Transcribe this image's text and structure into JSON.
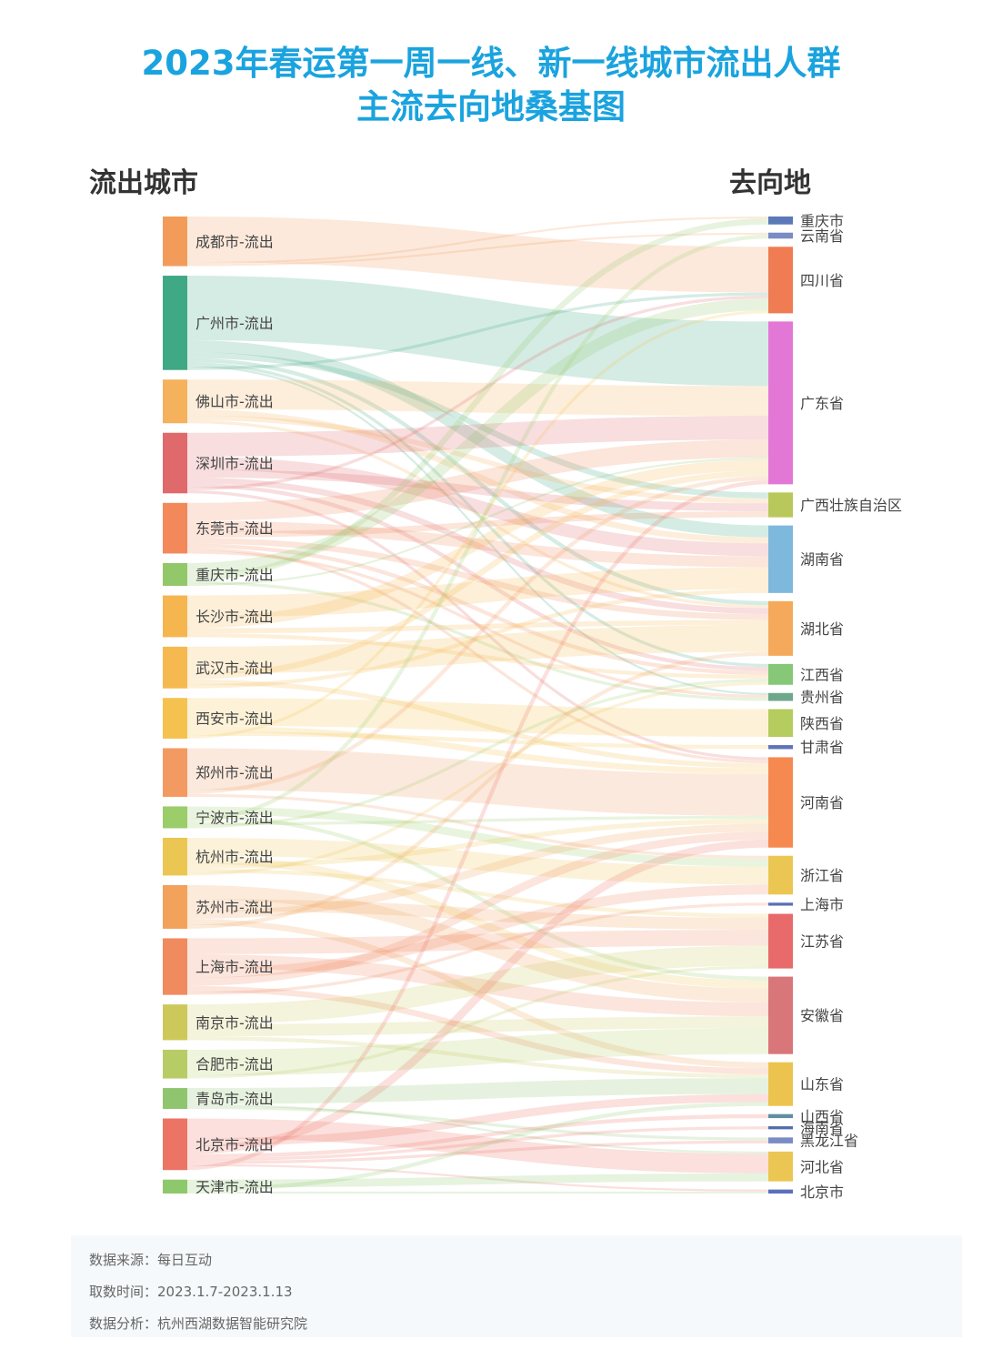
{
  "title": {
    "line1": "2023年春运第一周一线、新一线城市流出人群",
    "line2": "主流去向地桑基图"
  },
  "headers": {
    "source": "流出城市",
    "target": "去向地"
  },
  "footer": {
    "source": "数据来源：每日互动",
    "period": "取数时间：2023.1.7-2023.1.13",
    "analysis": "数据分析：杭州西湖数据智能研究院"
  },
  "chart_data": {
    "type": "sankey",
    "sources": [
      {
        "name": "成都市-流出",
        "color": "#f39c5a"
      },
      {
        "name": "广州市-流出",
        "color": "#3fa884"
      },
      {
        "name": "佛山市-流出",
        "color": "#f5b15c"
      },
      {
        "name": "深圳市-流出",
        "color": "#e0696c"
      },
      {
        "name": "东莞市-流出",
        "color": "#f3885b"
      },
      {
        "name": "重庆市-流出",
        "color": "#93c86a"
      },
      {
        "name": "长沙市-流出",
        "color": "#f5b54f"
      },
      {
        "name": "武汉市-流出",
        "color": "#f5b94f"
      },
      {
        "name": "西安市-流出",
        "color": "#f5c24f"
      },
      {
        "name": "郑州市-流出",
        "color": "#f39a62"
      },
      {
        "name": "宁波市-流出",
        "color": "#9bcd6b"
      },
      {
        "name": "杭州市-流出",
        "color": "#ecc653"
      },
      {
        "name": "苏州市-流出",
        "color": "#f3a25b"
      },
      {
        "name": "上海市-流出",
        "color": "#f08a5f"
      },
      {
        "name": "南京市-流出",
        "color": "#cdc85a"
      },
      {
        "name": "合肥市-流出",
        "color": "#b8cc66"
      },
      {
        "name": "青岛市-流出",
        "color": "#8fc56f"
      },
      {
        "name": "北京市-流出",
        "color": "#ec7465"
      },
      {
        "name": "天津市-流出",
        "color": "#8ec86c"
      }
    ],
    "targets": [
      {
        "name": "重庆市",
        "color": "#5b78b8"
      },
      {
        "name": "云南省",
        "color": "#7a8cc4"
      },
      {
        "name": "四川省",
        "color": "#ef7c52"
      },
      {
        "name": "广东省",
        "color": "#e377d6"
      },
      {
        "name": "广西壮族自治区",
        "color": "#b9c85a"
      },
      {
        "name": "湖南省",
        "color": "#7eb8dd"
      },
      {
        "name": "湖北省",
        "color": "#f5a95a"
      },
      {
        "name": "江西省",
        "color": "#86c877"
      },
      {
        "name": "贵州省",
        "color": "#6ea88a"
      },
      {
        "name": "陕西省",
        "color": "#b5cc5e"
      },
      {
        "name": "甘肃省",
        "color": "#5f73b8"
      },
      {
        "name": "河南省",
        "color": "#f5894f"
      },
      {
        "name": "浙江省",
        "color": "#ecc653"
      },
      {
        "name": "上海市",
        "color": "#5870b5"
      },
      {
        "name": "江苏省",
        "color": "#e86a6a"
      },
      {
        "name": "安徽省",
        "color": "#d9767a"
      },
      {
        "name": "山东省",
        "color": "#ecc34f"
      },
      {
        "name": "山西省",
        "color": "#5f8fa0"
      },
      {
        "name": "海南省",
        "color": "#4f6ea8"
      },
      {
        "name": "黑龙江省",
        "color": "#7a8cc4"
      },
      {
        "name": "河北省",
        "color": "#ecc653"
      },
      {
        "name": "北京市",
        "color": "#5b6fbf"
      }
    ],
    "links": [
      {
        "source": 0,
        "target": 2,
        "value": 46
      },
      {
        "source": 0,
        "target": 0,
        "value": 2
      },
      {
        "source": 0,
        "target": 1,
        "value": 2
      },
      {
        "source": 1,
        "target": 3,
        "value": 65
      },
      {
        "source": 1,
        "target": 5,
        "value": 12
      },
      {
        "source": 1,
        "target": 4,
        "value": 6
      },
      {
        "source": 1,
        "target": 6,
        "value": 4
      },
      {
        "source": 1,
        "target": 7,
        "value": 3
      },
      {
        "source": 1,
        "target": 8,
        "value": 2
      },
      {
        "source": 1,
        "target": 2,
        "value": 3
      },
      {
        "source": 2,
        "target": 3,
        "value": 30
      },
      {
        "source": 2,
        "target": 5,
        "value": 6
      },
      {
        "source": 2,
        "target": 4,
        "value": 5
      },
      {
        "source": 2,
        "target": 6,
        "value": 3
      },
      {
        "source": 3,
        "target": 3,
        "value": 24
      },
      {
        "source": 3,
        "target": 5,
        "value": 13
      },
      {
        "source": 3,
        "target": 4,
        "value": 8
      },
      {
        "source": 3,
        "target": 6,
        "value": 6
      },
      {
        "source": 3,
        "target": 7,
        "value": 4
      },
      {
        "source": 3,
        "target": 2,
        "value": 3
      },
      {
        "source": 3,
        "target": 11,
        "value": 3
      },
      {
        "source": 4,
        "target": 3,
        "value": 18
      },
      {
        "source": 4,
        "target": 5,
        "value": 11
      },
      {
        "source": 4,
        "target": 4,
        "value": 6
      },
      {
        "source": 4,
        "target": 6,
        "value": 6
      },
      {
        "source": 4,
        "target": 7,
        "value": 4
      },
      {
        "source": 4,
        "target": 11,
        "value": 3
      },
      {
        "source": 4,
        "target": 8,
        "value": 3
      },
      {
        "source": 5,
        "target": 2,
        "value": 12
      },
      {
        "source": 5,
        "target": 0,
        "value": 6
      },
      {
        "source": 5,
        "target": 8,
        "value": 3
      },
      {
        "source": 5,
        "target": 3,
        "value": 2
      },
      {
        "source": 6,
        "target": 5,
        "value": 22
      },
      {
        "source": 6,
        "target": 3,
        "value": 11
      },
      {
        "source": 6,
        "target": 6,
        "value": 5
      },
      {
        "source": 6,
        "target": 7,
        "value": 4
      },
      {
        "source": 7,
        "target": 6,
        "value": 27
      },
      {
        "source": 7,
        "target": 3,
        "value": 6
      },
      {
        "source": 7,
        "target": 11,
        "value": 5
      },
      {
        "source": 7,
        "target": 5,
        "value": 4
      },
      {
        "source": 8,
        "target": 9,
        "value": 28
      },
      {
        "source": 8,
        "target": 11,
        "value": 6
      },
      {
        "source": 8,
        "target": 10,
        "value": 4
      },
      {
        "source": 8,
        "target": 2,
        "value": 3
      },
      {
        "source": 9,
        "target": 11,
        "value": 42
      },
      {
        "source": 9,
        "target": 3,
        "value": 4
      },
      {
        "source": 9,
        "target": 12,
        "value": 3
      },
      {
        "source": 10,
        "target": 12,
        "value": 8
      },
      {
        "source": 10,
        "target": 15,
        "value": 4
      },
      {
        "source": 10,
        "target": 1,
        "value": 4
      },
      {
        "source": 10,
        "target": 11,
        "value": 3
      },
      {
        "source": 10,
        "target": 7,
        "value": 3
      },
      {
        "source": 11,
        "target": 12,
        "value": 18
      },
      {
        "source": 11,
        "target": 15,
        "value": 8
      },
      {
        "source": 11,
        "target": 11,
        "value": 5
      },
      {
        "source": 11,
        "target": 14,
        "value": 4
      },
      {
        "source": 11,
        "target": 7,
        "value": 3
      },
      {
        "source": 12,
        "target": 15,
        "value": 14
      },
      {
        "source": 12,
        "target": 14,
        "value": 12
      },
      {
        "source": 12,
        "target": 11,
        "value": 8
      },
      {
        "source": 12,
        "target": 16,
        "value": 6
      },
      {
        "source": 12,
        "target": 6,
        "value": 4
      },
      {
        "source": 13,
        "target": 14,
        "value": 16
      },
      {
        "source": 13,
        "target": 15,
        "value": 14
      },
      {
        "source": 13,
        "target": 12,
        "value": 10
      },
      {
        "source": 13,
        "target": 11,
        "value": 8
      },
      {
        "source": 13,
        "target": 16,
        "value": 6
      },
      {
        "source": 13,
        "target": 13,
        "value": 3
      },
      {
        "source": 14,
        "target": 14,
        "value": 20
      },
      {
        "source": 14,
        "target": 15,
        "value": 12
      },
      {
        "source": 14,
        "target": 16,
        "value": 4
      },
      {
        "source": 15,
        "target": 15,
        "value": 26
      },
      {
        "source": 15,
        "target": 14,
        "value": 3
      },
      {
        "source": 16,
        "target": 16,
        "value": 16
      },
      {
        "source": 16,
        "target": 20,
        "value": 2
      },
      {
        "source": 16,
        "target": 19,
        "value": 3
      },
      {
        "source": 17,
        "target": 20,
        "value": 20
      },
      {
        "source": 17,
        "target": 16,
        "value": 8
      },
      {
        "source": 17,
        "target": 11,
        "value": 8
      },
      {
        "source": 17,
        "target": 17,
        "value": 4
      },
      {
        "source": 17,
        "target": 18,
        "value": 3
      },
      {
        "source": 17,
        "target": 19,
        "value": 3
      },
      {
        "source": 17,
        "target": 21,
        "value": 2
      },
      {
        "source": 17,
        "target": 3,
        "value": 4
      },
      {
        "source": 18,
        "target": 20,
        "value": 8
      },
      {
        "source": 18,
        "target": 16,
        "value": 4
      },
      {
        "source": 18,
        "target": 21,
        "value": 2
      }
    ]
  }
}
